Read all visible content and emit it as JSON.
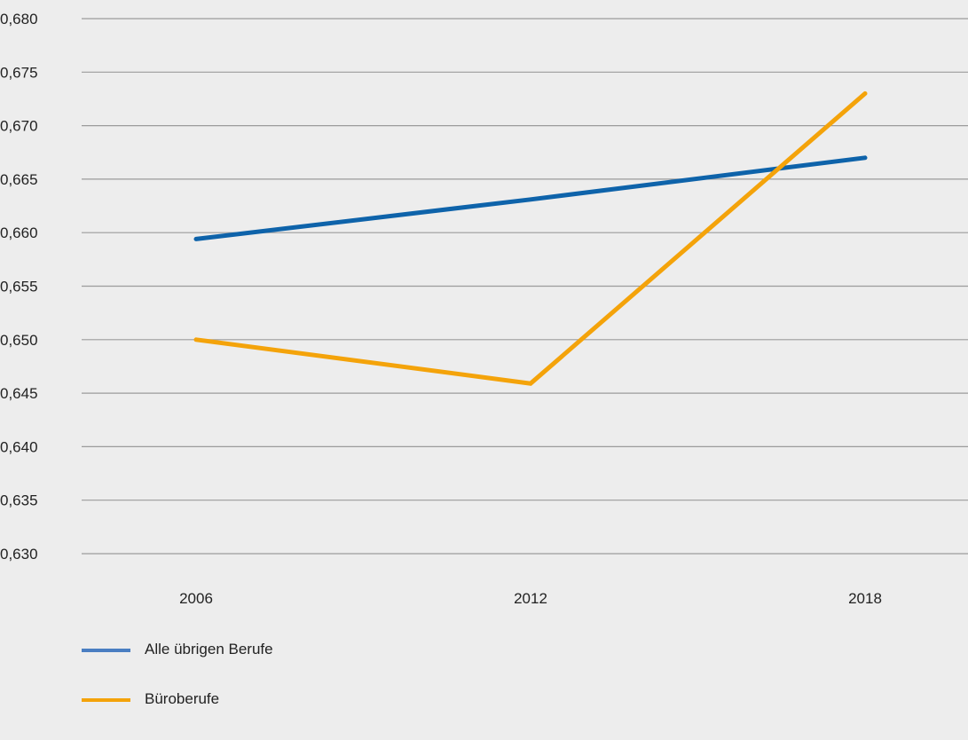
{
  "chart_data": {
    "type": "line",
    "title": "",
    "xlabel": "",
    "ylabel": "",
    "categories": [
      "2006",
      "2012",
      "2018"
    ],
    "ylim": [
      0.63,
      0.68
    ],
    "y_ticks": [
      "0,630",
      "0,635",
      "0,640",
      "0,645",
      "0,650",
      "0,655",
      "0,660",
      "0,665",
      "0,670",
      "0,675",
      "0,680"
    ],
    "grid": "horizontal",
    "legend_position": "bottom-left",
    "series": [
      {
        "name": "Alle übrigen Berufe",
        "color": "#0e63aa",
        "legend_color": "#4a7ec2",
        "values": [
          0.6594,
          0.6631,
          0.667
        ]
      },
      {
        "name": "Büroberufe",
        "color": "#f4a30a",
        "legend_color": "#f4a30a",
        "values": [
          0.65,
          0.6459,
          0.673
        ]
      }
    ]
  }
}
